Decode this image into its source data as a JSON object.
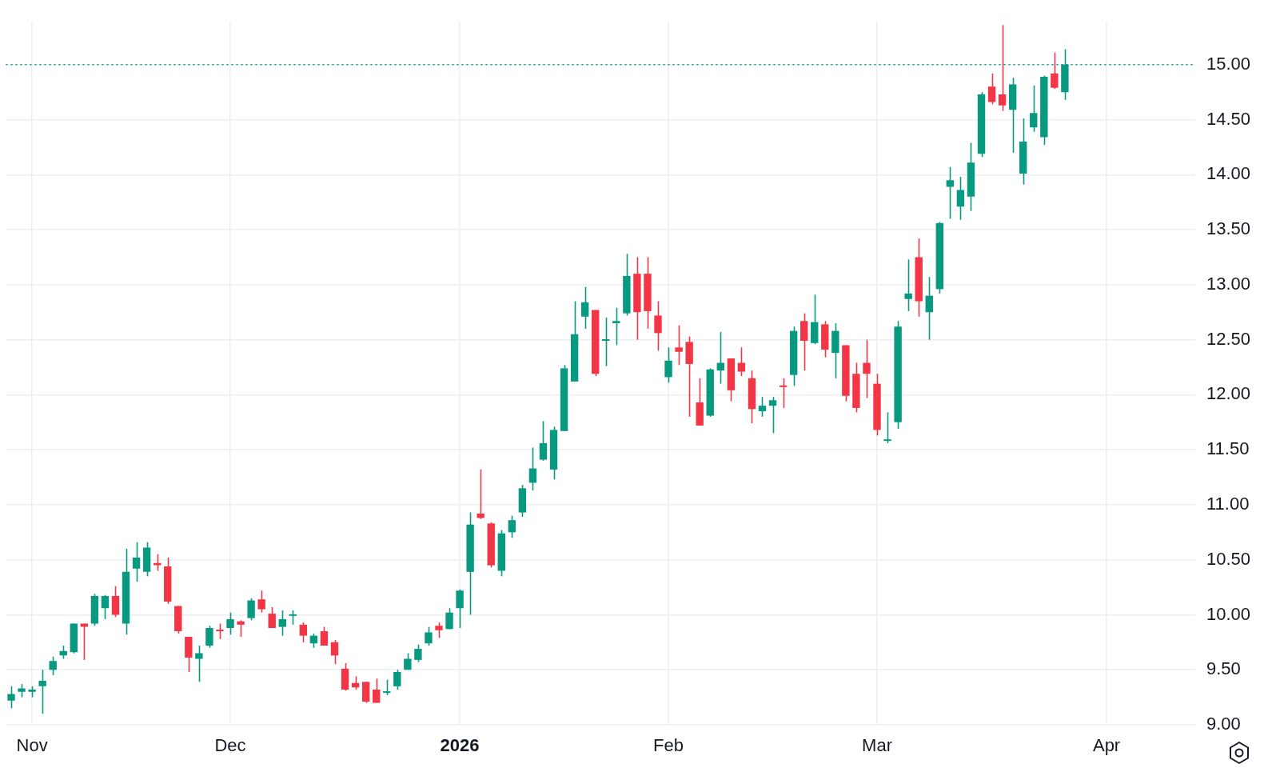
{
  "chart_data": {
    "type": "candlestick",
    "categories": [
      null,
      null,
      "Nov",
      null,
      null,
      null,
      null,
      null,
      null,
      null,
      null,
      null,
      null,
      null,
      null,
      null,
      null,
      null,
      null,
      null,
      null,
      "Dec",
      null,
      null,
      null,
      null,
      null,
      null,
      null,
      null,
      null,
      null,
      null,
      null,
      null,
      null,
      null,
      null,
      null,
      null,
      null,
      null,
      null,
      "2026",
      null,
      null,
      null,
      null,
      null,
      null,
      null,
      null,
      null,
      null,
      null,
      null,
      null,
      null,
      null,
      null,
      null,
      null,
      null,
      "Feb",
      null,
      null,
      null,
      null,
      null,
      null,
      null,
      null,
      null,
      null,
      null,
      null,
      null,
      null,
      null,
      null,
      null,
      null,
      null,
      "Mar",
      null,
      null,
      null,
      null,
      null,
      null,
      null,
      null,
      null,
      null,
      null,
      null,
      null,
      null,
      null,
      null,
      null,
      null,
      null,
      null,
      null,
      "Apr",
      null,
      null,
      null,
      null,
      null,
      null,
      null,
      null
    ],
    "ohlc": [
      [
        9.22,
        9.35,
        9.15,
        9.28
      ],
      [
        9.3,
        9.37,
        9.25,
        9.33
      ],
      [
        9.3,
        9.35,
        9.25,
        9.32
      ],
      [
        9.35,
        9.5,
        9.1,
        9.4
      ],
      [
        9.5,
        9.62,
        9.45,
        9.58
      ],
      [
        9.63,
        9.72,
        9.6,
        9.67
      ],
      [
        9.66,
        9.92,
        9.65,
        9.92
      ],
      [
        9.92,
        9.92,
        9.59,
        9.89
      ],
      [
        9.92,
        10.19,
        9.9,
        10.17
      ],
      [
        10.06,
        10.18,
        9.96,
        10.17
      ],
      [
        10.17,
        10.26,
        9.98,
        10.0
      ],
      [
        9.92,
        10.6,
        9.82,
        10.39
      ],
      [
        10.42,
        10.66,
        10.3,
        10.52
      ],
      [
        10.39,
        10.66,
        10.35,
        10.61
      ],
      [
        10.47,
        10.55,
        10.4,
        10.45
      ],
      [
        10.44,
        10.52,
        10.1,
        10.12
      ],
      [
        10.08,
        10.08,
        9.83,
        9.85
      ],
      [
        9.8,
        9.8,
        9.48,
        9.61
      ],
      [
        9.6,
        9.72,
        9.39,
        9.65
      ],
      [
        9.72,
        9.9,
        9.7,
        9.88
      ],
      [
        9.86,
        9.92,
        9.78,
        9.85
      ],
      [
        9.88,
        10.02,
        9.82,
        9.96
      ],
      [
        9.94,
        9.95,
        9.8,
        9.91
      ],
      [
        9.97,
        10.15,
        9.95,
        10.13
      ],
      [
        10.14,
        10.22,
        10.02,
        10.05
      ],
      [
        10.01,
        10.07,
        9.88,
        9.88
      ],
      [
        9.89,
        10.04,
        9.81,
        9.96
      ],
      [
        9.99,
        10.04,
        9.91,
        10.0
      ],
      [
        9.91,
        9.93,
        9.75,
        9.81
      ],
      [
        9.74,
        9.83,
        9.7,
        9.81
      ],
      [
        9.85,
        9.89,
        9.72,
        9.72
      ],
      [
        9.75,
        9.77,
        9.55,
        9.63
      ],
      [
        9.51,
        9.56,
        9.31,
        9.32
      ],
      [
        9.38,
        9.44,
        9.32,
        9.34
      ],
      [
        9.39,
        9.39,
        9.2,
        9.21
      ],
      [
        9.32,
        9.42,
        9.2,
        9.2
      ],
      [
        9.29,
        9.41,
        9.27,
        9.3
      ],
      [
        9.35,
        9.5,
        9.32,
        9.48
      ],
      [
        9.5,
        9.65,
        9.5,
        9.6
      ],
      [
        9.59,
        9.73,
        9.57,
        9.69
      ],
      [
        9.74,
        9.89,
        9.72,
        9.84
      ],
      [
        9.9,
        9.93,
        9.79,
        9.86
      ],
      [
        9.87,
        10.06,
        9.87,
        10.02
      ],
      [
        10.06,
        10.23,
        9.88,
        10.22
      ],
      [
        10.39,
        10.93,
        10.0,
        10.82
      ],
      [
        10.92,
        11.32,
        10.87,
        10.88
      ],
      [
        10.83,
        10.84,
        10.43,
        10.45
      ],
      [
        10.4,
        10.77,
        10.35,
        10.74
      ],
      [
        10.75,
        10.9,
        10.7,
        10.86
      ],
      [
        10.93,
        11.18,
        10.89,
        11.15
      ],
      [
        11.2,
        11.52,
        11.13,
        11.33
      ],
      [
        11.41,
        11.76,
        11.4,
        11.56
      ],
      [
        11.32,
        11.71,
        11.23,
        11.68
      ],
      [
        11.67,
        12.27,
        11.67,
        12.24
      ],
      [
        12.12,
        12.85,
        12.12,
        12.55
      ],
      [
        12.71,
        12.98,
        12.6,
        12.84
      ],
      [
        12.77,
        12.77,
        12.17,
        12.19
      ],
      [
        12.49,
        12.7,
        12.26,
        12.5
      ],
      [
        12.65,
        12.79,
        12.45,
        12.67
      ],
      [
        12.74,
        13.28,
        12.72,
        13.08
      ],
      [
        13.1,
        13.25,
        12.5,
        12.75
      ],
      [
        13.1,
        13.25,
        12.6,
        12.76
      ],
      [
        12.72,
        12.85,
        12.4,
        12.56
      ],
      [
        12.16,
        12.43,
        12.11,
        12.31
      ],
      [
        12.43,
        12.63,
        12.27,
        12.39
      ],
      [
        12.48,
        12.53,
        11.8,
        12.28
      ],
      [
        11.93,
        12.15,
        11.72,
        11.72
      ],
      [
        11.81,
        12.24,
        11.8,
        12.23
      ],
      [
        12.22,
        12.57,
        12.1,
        12.29
      ],
      [
        12.33,
        12.33,
        11.94,
        12.04
      ],
      [
        12.29,
        12.43,
        12.17,
        12.21
      ],
      [
        12.15,
        12.22,
        11.74,
        11.87
      ],
      [
        11.85,
        11.98,
        11.8,
        11.9
      ],
      [
        11.9,
        11.98,
        11.65,
        11.95
      ],
      [
        12.08,
        12.15,
        11.88,
        12.07
      ],
      [
        12.18,
        12.62,
        12.08,
        12.58
      ],
      [
        12.67,
        12.74,
        12.22,
        12.49
      ],
      [
        12.47,
        12.91,
        12.46,
        12.66
      ],
      [
        12.64,
        12.67,
        12.34,
        12.41
      ],
      [
        12.38,
        12.65,
        12.15,
        12.58
      ],
      [
        12.45,
        12.45,
        11.94,
        11.99
      ],
      [
        12.19,
        12.29,
        11.84,
        11.88
      ],
      [
        12.29,
        12.5,
        11.97,
        12.19
      ],
      [
        12.1,
        12.19,
        11.63,
        11.68
      ],
      [
        11.58,
        11.84,
        11.56,
        11.59
      ],
      [
        11.75,
        12.67,
        11.69,
        12.62
      ],
      [
        12.87,
        13.23,
        12.76,
        12.92
      ],
      [
        13.25,
        13.42,
        12.71,
        12.85
      ],
      [
        12.75,
        13.07,
        12.5,
        12.9
      ],
      [
        12.96,
        13.57,
        12.92,
        13.56
      ],
      [
        13.89,
        14.07,
        13.6,
        13.95
      ],
      [
        13.71,
        13.98,
        13.59,
        13.86
      ],
      [
        13.8,
        14.29,
        13.67,
        14.11
      ],
      [
        14.19,
        14.75,
        14.16,
        14.73
      ],
      [
        14.8,
        14.92,
        14.64,
        14.66
      ],
      [
        14.73,
        15.36,
        14.58,
        14.63
      ],
      [
        14.59,
        14.88,
        14.2,
        14.82
      ],
      [
        14.01,
        14.51,
        13.91,
        14.3
      ],
      [
        14.43,
        14.81,
        14.39,
        14.56
      ],
      [
        14.34,
        14.9,
        14.27,
        14.89
      ],
      [
        14.92,
        15.11,
        14.78,
        14.79
      ],
      [
        14.75,
        15.14,
        14.68,
        15.0
      ],
      null,
      null,
      null,
      null,
      null,
      null,
      null,
      null,
      null,
      null,
      null,
      null
    ],
    "colors": [
      "#089981",
      "#089981",
      "#089981",
      "#089981",
      "#089981",
      "#089981",
      "#089981",
      "#f23645",
      "#089981",
      "#089981",
      "#f23645",
      "#089981",
      "#089981",
      "#089981",
      "#f23645",
      "#f23645",
      "#f23645",
      "#f23645",
      "#089981",
      "#089981",
      "#f23645",
      "#089981",
      "#f23645",
      "#089981",
      "#f23645",
      "#f23645",
      "#089981",
      "#089981",
      "#f23645",
      "#089981",
      "#f23645",
      "#f23645",
      "#f23645",
      "#f23645",
      "#f23645",
      "#f23645",
      "#089981",
      "#089981",
      "#089981",
      "#089981",
      "#089981",
      "#f23645",
      "#089981",
      "#089981",
      "#089981",
      "#f23645",
      "#f23645",
      "#089981",
      "#089981",
      "#089981",
      "#089981",
      "#089981",
      "#089981",
      "#089981",
      "#089981",
      "#089981",
      "#f23645",
      "#089981",
      "#089981",
      "#089981",
      "#f23645",
      "#f23645",
      "#f23645",
      "#089981",
      "#f23645",
      "#f23645",
      "#f23645",
      "#089981",
      "#089981",
      "#f23645",
      "#f23645",
      "#f23645",
      "#089981",
      "#089981",
      "#f23645",
      "#089981",
      "#f23645",
      "#089981",
      "#f23645",
      "#089981",
      "#f23645",
      "#f23645",
      "#f23645",
      "#f23645",
      "#089981",
      "#089981",
      "#089981",
      "#f23645",
      "#089981",
      "#089981",
      "#089981",
      "#089981",
      "#089981",
      "#089981",
      "#f23645",
      "#f23645",
      "#089981",
      "#089981",
      "#089981",
      "#089981",
      "#f23645",
      "#089981",
      null,
      null,
      null,
      null,
      null,
      null,
      null,
      null,
      null,
      null,
      null,
      null
    ],
    "ylim": [
      9.0,
      15.39
    ],
    "yticks": [
      {
        "value": 9.0,
        "label": "9.00"
      },
      {
        "value": 9.5,
        "label": "9.50"
      },
      {
        "value": 10.0,
        "label": "10.00"
      },
      {
        "value": 10.5,
        "label": "10.50"
      },
      {
        "value": 11.0,
        "label": "11.00"
      },
      {
        "value": 11.5,
        "label": "11.50"
      },
      {
        "value": 12.0,
        "label": "12.00"
      },
      {
        "value": 12.5,
        "label": "12.50"
      },
      {
        "value": 13.0,
        "label": "13.00"
      },
      {
        "value": 13.5,
        "label": "13.50"
      },
      {
        "value": 14.0,
        "label": "14.00"
      },
      {
        "value": 14.5,
        "label": "14.50"
      },
      {
        "value": 15.0,
        "label": "15.00"
      }
    ],
    "ref_lines": [
      {
        "axis": "y",
        "value": 15.0,
        "label": null,
        "color": "#089981",
        "line_style": "dotted"
      }
    ],
    "grid": true,
    "legend": false
  }
}
